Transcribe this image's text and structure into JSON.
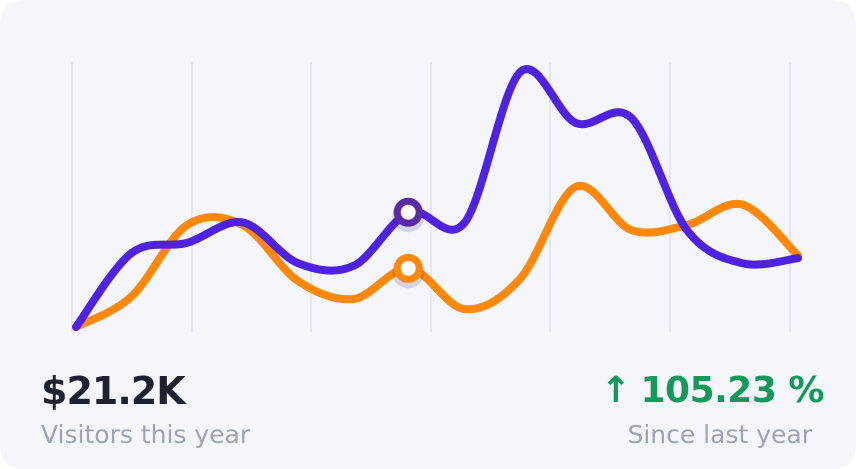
{
  "chart_data": {
    "type": "line",
    "x": [
      0,
      1,
      2,
      3,
      4,
      5,
      6,
      7,
      8,
      9,
      10,
      11,
      12,
      13
    ],
    "series": [
      {
        "color": "#4f22e3",
        "values": [
          0,
          29,
          33,
          41,
          25,
          24,
          45,
          41,
          100,
          80,
          82,
          38,
          25,
          27
        ],
        "highlight_index": 6
      },
      {
        "color": "#ff870a",
        "values": [
          0,
          12,
          40,
          40,
          18,
          11,
          23,
          7,
          19,
          55,
          38,
          40,
          48,
          28
        ],
        "highlight_index": 6
      }
    ],
    "ylim": [
      0,
      100
    ],
    "grid": "vertical",
    "legend": "none"
  },
  "stats": {
    "total": "$21.2K",
    "total_label": "Visitors this year",
    "change_arrow": "↑",
    "change_value": "105.23 %",
    "change_label": "Since last year",
    "change_color": "#129a5a"
  }
}
